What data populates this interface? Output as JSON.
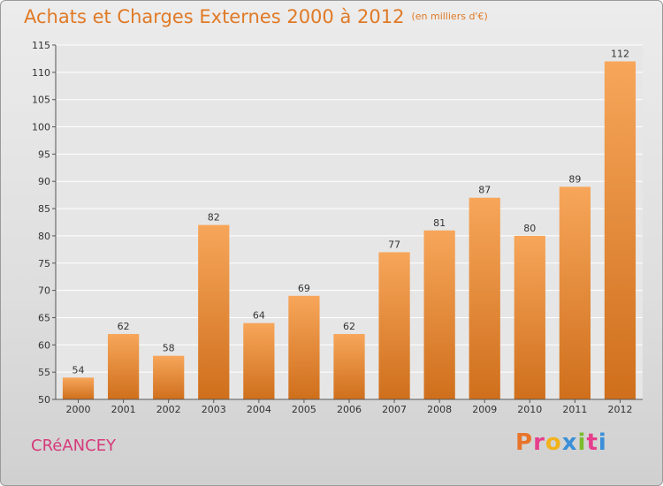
{
  "header": {
    "title": "Achats et Charges Externes 2000 à 2012",
    "subtitle": "(en milliers d'€)"
  },
  "footer": {
    "commune": "CRéANCEY",
    "brand_letters": [
      "P",
      "r",
      "o",
      "x",
      "i",
      "t",
      "i"
    ],
    "brand_colors": [
      "#e8742a",
      "#e63e8c",
      "#f2b21c",
      "#3a8fd8",
      "#7bbd2c",
      "#e63e8c",
      "#3a8fd8"
    ]
  },
  "colors": {
    "bar_light": "#f7a65a",
    "bar_dark": "#cf6f1c",
    "grid": "#ffffff",
    "axis_text": "#333333",
    "title": "#e07a26"
  },
  "chart_data": {
    "type": "bar",
    "categories": [
      "2000",
      "2001",
      "2002",
      "2003",
      "2004",
      "2005",
      "2006",
      "2007",
      "2008",
      "2009",
      "2010",
      "2011",
      "2012"
    ],
    "values": [
      54,
      62,
      58,
      82,
      64,
      69,
      62,
      77,
      81,
      87,
      80,
      89,
      112
    ],
    "ylim": [
      50,
      115
    ],
    "yticks": [
      50,
      55,
      60,
      65,
      70,
      75,
      80,
      85,
      90,
      95,
      100,
      105,
      110,
      115
    ],
    "grid": true,
    "data_labels": true
  }
}
